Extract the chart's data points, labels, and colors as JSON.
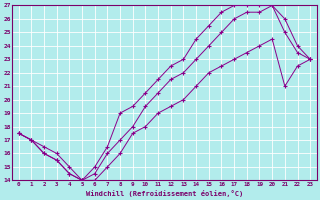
{
  "xlabel": "Windchill (Refroidissement éolien,°C)",
  "background_color": "#b2ecec",
  "grid_color": "#ffffff",
  "line_color": "#8b008b",
  "xlim": [
    -0.5,
    23.5
  ],
  "ylim": [
    14,
    27
  ],
  "xticks": [
    0,
    1,
    2,
    3,
    4,
    5,
    6,
    7,
    8,
    9,
    10,
    11,
    12,
    13,
    14,
    15,
    16,
    17,
    18,
    19,
    20,
    21,
    22,
    23
  ],
  "yticks": [
    14,
    15,
    16,
    17,
    18,
    19,
    20,
    21,
    22,
    23,
    24,
    25,
    26,
    27
  ],
  "line1_x": [
    0,
    1,
    2,
    3,
    4,
    5,
    6,
    7,
    8,
    9,
    10,
    11,
    12,
    13,
    14,
    15,
    16,
    17,
    18,
    19,
    20,
    21,
    22,
    23
  ],
  "line1_y": [
    17.5,
    17,
    16.5,
    16,
    15,
    14,
    15,
    16.5,
    19,
    19.5,
    20.5,
    21.5,
    22.5,
    23,
    24.5,
    25.5,
    26.5,
    27,
    27,
    27,
    27,
    26,
    24,
    23
  ],
  "line2_x": [
    0,
    1,
    2,
    3,
    4,
    5,
    6,
    7,
    8,
    9,
    10,
    11,
    12,
    13,
    14,
    15,
    16,
    17,
    18,
    19,
    20,
    21,
    22,
    23
  ],
  "line2_y": [
    17.5,
    17,
    16,
    15.5,
    14.5,
    14,
    14.5,
    16,
    17,
    18,
    19.5,
    20.5,
    21.5,
    22,
    23,
    24,
    25,
    26,
    26.5,
    26.5,
    27,
    25,
    23.5,
    23
  ],
  "line3_x": [
    0,
    1,
    2,
    3,
    4,
    5,
    6,
    7,
    8,
    9,
    10,
    11,
    12,
    13,
    14,
    15,
    16,
    17,
    18,
    19,
    20,
    21,
    22,
    23
  ],
  "line3_y": [
    17.5,
    17,
    16,
    15.5,
    14.5,
    14,
    14,
    15,
    16,
    17.5,
    18,
    19,
    19.5,
    20,
    21,
    22,
    22.5,
    23,
    23.5,
    24,
    24.5,
    21,
    22.5,
    23
  ]
}
